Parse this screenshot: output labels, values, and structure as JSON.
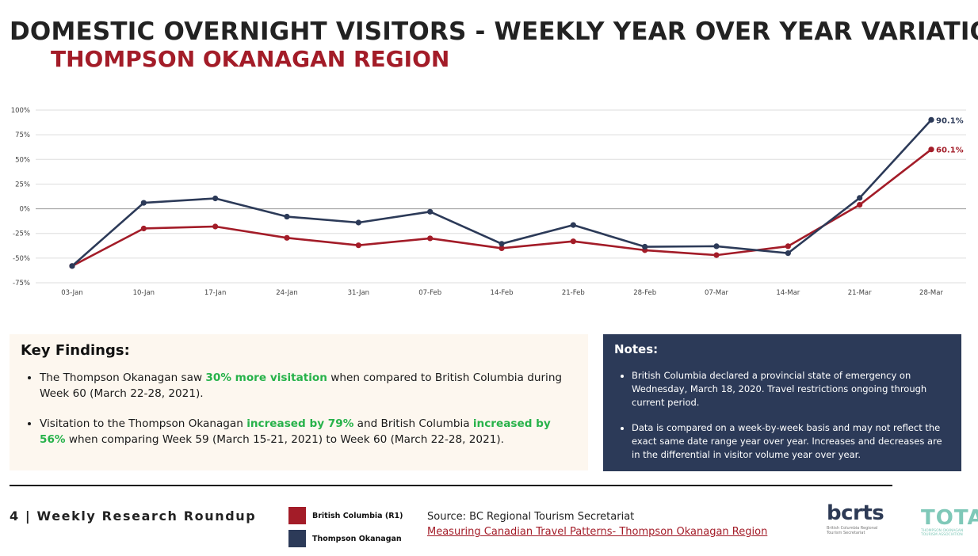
{
  "header": {
    "title": "DOMESTIC OVERNIGHT VISITORS - WEEKLY YEAR OVER YEAR VARIATION",
    "subtitle": "THOMPSON OKANAGAN REGION"
  },
  "colors": {
    "bc": "#a31c28",
    "to": "#2c3a58",
    "highlight": "#27b24a",
    "notes_bg": "#2c3a58",
    "link": "#a31c28"
  },
  "chart_data": {
    "type": "line",
    "title": "",
    "xlabel": "",
    "ylabel": "",
    "categories": [
      "03-Jan",
      "10-Jan",
      "17-Jan",
      "24-Jan",
      "31-Jan",
      "07-Feb",
      "14-Feb",
      "21-Feb",
      "28-Feb",
      "07-Mar",
      "14-Mar",
      "21-Mar",
      "28-Mar"
    ],
    "ylim": [
      -75,
      100
    ],
    "yticks": [
      100,
      75,
      50,
      25,
      0,
      -25,
      -50,
      -75
    ],
    "ytick_labels": [
      "100%",
      "75%",
      "50%",
      "25%",
      "0%",
      "-25%",
      "-50%",
      "-75%"
    ],
    "grid": true,
    "series": [
      {
        "name": "British Columbia (R1)",
        "color": "#a31c28",
        "values": [
          -58,
          -20,
          -18,
          -29.5,
          -37,
          -30,
          -40,
          -33,
          -42,
          -47,
          -38,
          4,
          60.1
        ],
        "end_label": "60.1%"
      },
      {
        "name": "Thompson Okanagan",
        "color": "#2c3a58",
        "values": [
          -58,
          6,
          10.5,
          -8,
          -14,
          -3,
          -35.5,
          -16.5,
          -38.5,
          -38,
          -45,
          11,
          90.1
        ],
        "end_label": "90.1%"
      }
    ]
  },
  "findings": {
    "heading": "Key Findings:",
    "item1": {
      "part1": "The Thompson Okanagan saw ",
      "highlight1": "30% more visitation",
      "part2": " when compared to British Columbia during Week 60 (March 22-28, 2021)."
    },
    "item2": {
      "part1": "Visitation to the Thompson Okanagan ",
      "highlight1": "increased by 79%",
      "part2": " and British Columbia ",
      "highlight2": "increased by 56%",
      "part3": " when comparing Week 59 (March 15-21, 2021) to Week 60 (March 22-28, 2021)."
    }
  },
  "notes": {
    "heading": "Notes:",
    "items": [
      "British Columbia declared a provincial state of emergency on Wednesday, March 18, 2020. Travel restrictions ongoing through current period.",
      "Data is compared on a week-by-week basis and may not reflect the exact same date range year over year. Increases and decreases are in the differential in visitor volume year over year."
    ]
  },
  "footer": {
    "page_label": "4 | Weekly Research Roundup",
    "legend": [
      "British Columbia (R1)",
      "Thompson Okanagan"
    ],
    "source": "Source: BC Regional Tourism Secretariat",
    "link_text": "Measuring Canadian Travel Patterns- Thompson Okanagan Region",
    "logo_bcrts": "bcrts",
    "logo_bcrts_sub": "British Columbia Regional Tourism Secretariat",
    "logo_tota": "TOTA",
    "logo_tota_sub": "THOMPSON OKANAGAN TOURISM ASSOCIATION"
  }
}
